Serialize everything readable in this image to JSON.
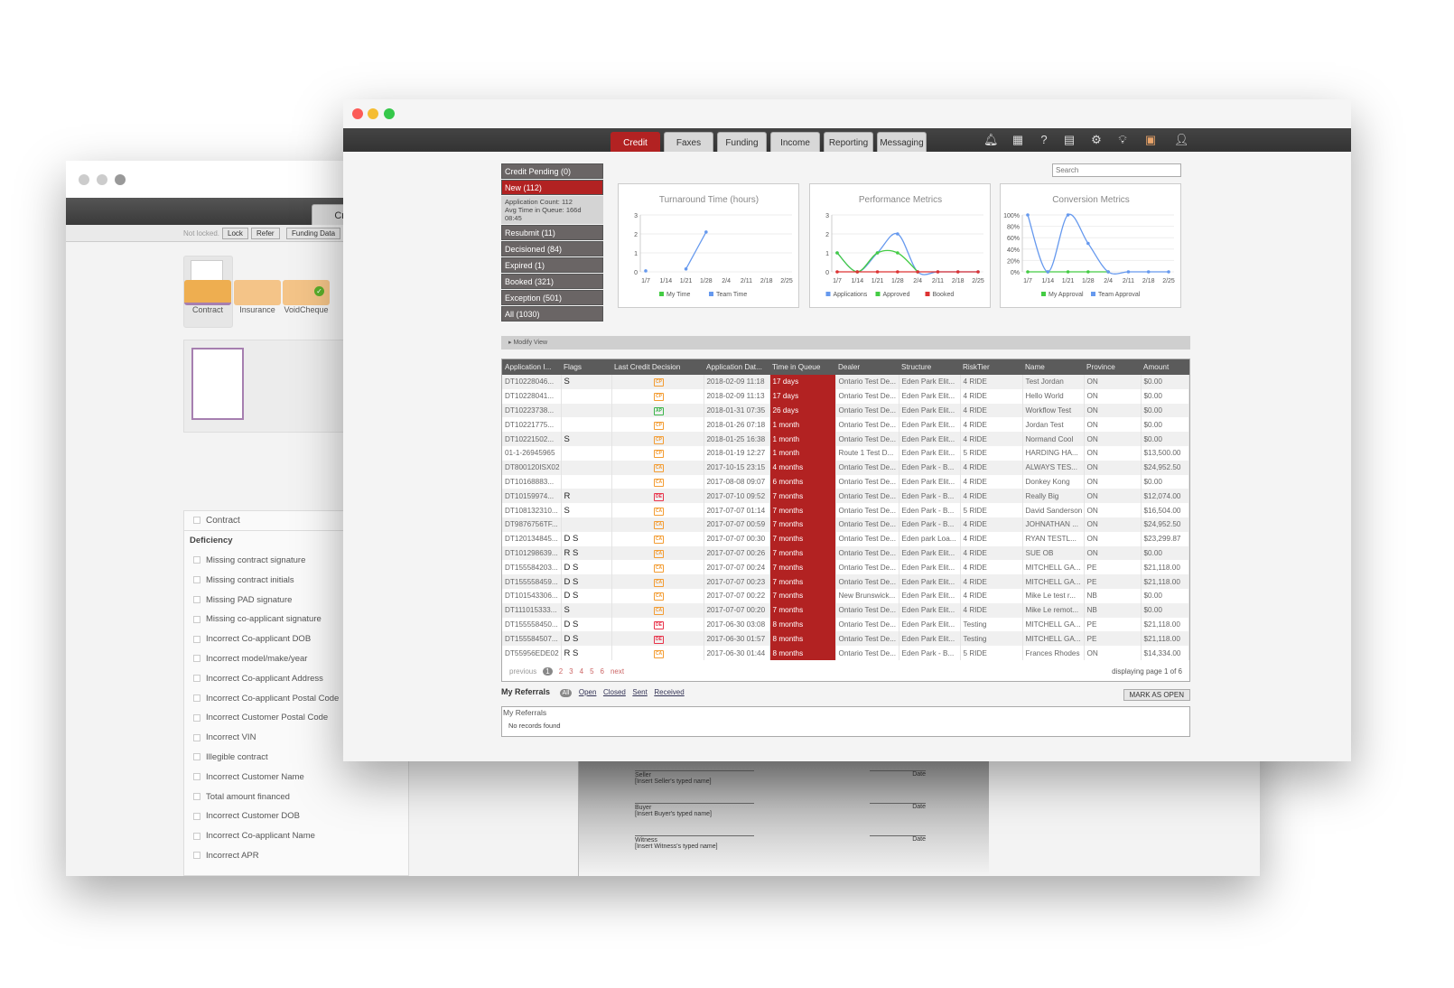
{
  "back_window": {
    "tab": "Credit",
    "lock_status": "Not locked.",
    "buttons": [
      "Lock",
      "Refer",
      "Funding Data"
    ],
    "documents": [
      "Contract",
      "Insurance",
      "VoidCheque"
    ],
    "contract_label": "Contract",
    "deficiency_title": "Deficiency",
    "deficiencies": [
      "Missing contract signature",
      "Missing contract initials",
      "Missing PAD signature",
      "Missing co-applicant signature",
      "Incorrect Co-applicant DOB",
      "Incorrect model/make/year",
      "Incorrect Co-applicant Address",
      "Incorrect Co-applicant Postal Code",
      "Incorrect Customer Postal Code",
      "Incorrect VIN",
      "Illegible contract",
      "Incorrect Customer Name",
      "Total amount financed",
      "Incorrect Customer DOB",
      "Incorrect Co-applicant Name",
      "Incorrect APR"
    ],
    "signatures": [
      {
        "role": "Seller",
        "name": "[Insert Seller's typed name]"
      },
      {
        "role": "Buyer",
        "name": "[Insert Buyer's typed name]"
      },
      {
        "role": "Witness",
        "name": "[Insert Witness's typed name]"
      }
    ],
    "date_label": "Date"
  },
  "nav": {
    "tabs": [
      "Credit",
      "Faxes",
      "Funding",
      "Income",
      "Reporting",
      "Messaging"
    ],
    "active": "Credit",
    "icons": [
      "bell-icon",
      "calculator-icon",
      "help-icon",
      "document-add-icon",
      "settings-icon",
      "lightbulb-icon",
      "locked-folder-icon",
      "user-avatar-icon"
    ]
  },
  "queues": [
    {
      "label": "Credit Pending (0)"
    },
    {
      "label": "New (112)",
      "active": true
    },
    {
      "label": "Resubmit (11)"
    },
    {
      "label": "Decisioned (84)"
    },
    {
      "label": "Expired (1)"
    },
    {
      "label": "Booked (321)"
    },
    {
      "label": "Exception (501)"
    },
    {
      "label": "All (1030)"
    }
  ],
  "queue_info": {
    "count": "Application Count: 112",
    "avg": "Avg Time in Queue: 166d 08:45"
  },
  "search": {
    "placeholder": "Search"
  },
  "chart_data": [
    {
      "type": "line",
      "title": "Turnaround Time (hours)",
      "categories": [
        "1/7",
        "1/14",
        "1/21",
        "1/28",
        "2/4",
        "2/11",
        "2/18",
        "2/25"
      ],
      "ylim": [
        0,
        3
      ],
      "yticks": [
        "0",
        "1",
        "2",
        "3"
      ],
      "series": [
        {
          "name": "My Time",
          "color": "#44cc44",
          "values": [
            null,
            null,
            null,
            null,
            null,
            null,
            null,
            null
          ]
        },
        {
          "name": "Team Time",
          "color": "#6699ee",
          "values": [
            0.05,
            null,
            0.15,
            2.1,
            null,
            null,
            null,
            null
          ]
        }
      ]
    },
    {
      "type": "line",
      "title": "Performance Metrics",
      "categories": [
        "1/7",
        "1/14",
        "1/21",
        "1/28",
        "2/4",
        "2/11",
        "2/18",
        "2/25"
      ],
      "ylim": [
        0,
        3
      ],
      "yticks": [
        "0",
        "1",
        "2",
        "3"
      ],
      "series": [
        {
          "name": "Applications",
          "color": "#6699ee",
          "values": [
            1,
            0,
            1,
            2,
            0,
            0,
            0,
            0
          ]
        },
        {
          "name": "Approved",
          "color": "#44cc44",
          "values": [
            1,
            0,
            1,
            1,
            0,
            null,
            null,
            null
          ]
        },
        {
          "name": "Booked",
          "color": "#dd3333",
          "values": [
            0,
            0,
            0,
            0,
            0,
            0,
            0,
            0
          ]
        }
      ]
    },
    {
      "type": "line",
      "title": "Conversion Metrics",
      "categories": [
        "1/7",
        "1/14",
        "1/21",
        "1/28",
        "2/4",
        "2/11",
        "2/18",
        "2/25"
      ],
      "ylim": [
        0,
        100
      ],
      "yticks": [
        "0%",
        "20%",
        "40%",
        "60%",
        "80%",
        "100%"
      ],
      "series": [
        {
          "name": "My Approval",
          "color": "#44cc44",
          "values": [
            0,
            0,
            0,
            0,
            0,
            null,
            null,
            null
          ]
        },
        {
          "name": "Team Approval",
          "color": "#6699ee",
          "values": [
            100,
            0,
            100,
            50,
            0,
            0,
            0,
            0
          ]
        }
      ]
    }
  ],
  "modify_view": "Modify View",
  "table": {
    "headers": [
      "Application I...",
      "Flags",
      "Last Credit Decision",
      "Application Dat...",
      "Time in Queue",
      "Dealer",
      "Structure",
      "RiskTier",
      "Name",
      "Province",
      "Amount"
    ],
    "rows": [
      [
        "DT10228046...",
        "S",
        "CP",
        "2018-02-09 11:18",
        "17 days",
        "Ontario Test De...",
        "Eden Park Elit...",
        "4 RIDE",
        "Test Jordan",
        "ON",
        "$0.00"
      ],
      [
        "DT10228041...",
        "",
        "CP",
        "2018-02-09 11:13",
        "17 days",
        "Ontario Test De...",
        "Eden Park Elit...",
        "4 RIDE",
        "Hello World",
        "ON",
        "$0.00"
      ],
      [
        "DT10223738...",
        "",
        "AP",
        "2018-01-31 07:35",
        "26 days",
        "Ontario Test De...",
        "Eden Park Elit...",
        "4 RIDE",
        "Workflow Test",
        "ON",
        "$0.00"
      ],
      [
        "DT10221775...",
        "",
        "CP",
        "2018-01-26 07:18",
        "1 month",
        "Ontario Test De...",
        "Eden Park Elit...",
        "4 RIDE",
        "Jordan Test",
        "ON",
        "$0.00"
      ],
      [
        "DT10221502...",
        "S",
        "CP",
        "2018-01-25 16:38",
        "1 month",
        "Ontario Test De...",
        "Eden Park Elit...",
        "4 RIDE",
        "Normand Cool",
        "ON",
        "$0.00"
      ],
      [
        "01-1-26945965",
        "",
        "CP",
        "2018-01-19 12:27",
        "1 month",
        "Route 1 Test D...",
        "Eden Park Elit...",
        "5 RIDE",
        "HARDING HA...",
        "ON",
        "$13,500.00"
      ],
      [
        "DT800120ISX02",
        "",
        "CA",
        "2017-10-15 23:15",
        "4 months",
        "Ontario Test De...",
        "Eden Park - B...",
        "4 RIDE",
        "ALWAYS TES...",
        "ON",
        "$24,952.50"
      ],
      [
        "DT10168883...",
        "",
        "CA",
        "2017-08-08 09:07",
        "6 months",
        "Ontario Test De...",
        "Eden Park Elit...",
        "4 RIDE",
        "Donkey Kong",
        "ON",
        "$0.00"
      ],
      [
        "DT10159974...",
        "R",
        "DE",
        "2017-07-10 09:52",
        "7 months",
        "Ontario Test De...",
        "Eden Park - B...",
        "4 RIDE",
        "Really Big",
        "ON",
        "$12,074.00"
      ],
      [
        "DT108132310...",
        "S",
        "CA",
        "2017-07-07 01:14",
        "7 months",
        "Ontario Test De...",
        "Eden Park - B...",
        "5 RIDE",
        "David Sanderson",
        "ON",
        "$16,504.00"
      ],
      [
        "DT9876756TF...",
        "",
        "CA",
        "2017-07-07 00:59",
        "7 months",
        "Ontario Test De...",
        "Eden Park - B...",
        "4 RIDE",
        "JOHNATHAN ...",
        "ON",
        "$24,952.50"
      ],
      [
        "DT120134845...",
        "D S",
        "CA",
        "2017-07-07 00:30",
        "7 months",
        "Ontario Test De...",
        "Eden park Loa...",
        "4 RIDE",
        "RYAN TESTL...",
        "ON",
        "$23,299.87"
      ],
      [
        "DT101298639...",
        "R S",
        "CA",
        "2017-07-07 00:26",
        "7 months",
        "Ontario Test De...",
        "Eden Park Elit...",
        "4 RIDE",
        "SUE OB",
        "ON",
        "$0.00"
      ],
      [
        "DT155584203...",
        "D S",
        "CA",
        "2017-07-07 00:24",
        "7 months",
        "Ontario Test De...",
        "Eden Park Elit...",
        "4 RIDE",
        "MITCHELL GA...",
        "PE",
        "$21,118.00"
      ],
      [
        "DT155558459...",
        "D S",
        "CA",
        "2017-07-07 00:23",
        "7 months",
        "Ontario Test De...",
        "Eden Park Elit...",
        "4 RIDE",
        "MITCHELL GA...",
        "PE",
        "$21,118.00"
      ],
      [
        "DT101543306...",
        "D S",
        "CA",
        "2017-07-07 00:22",
        "7 months",
        "New Brunswick...",
        "Eden Park Elit...",
        "4 RIDE",
        "Mike Le test r...",
        "NB",
        "$0.00"
      ],
      [
        "DT111015333...",
        "S",
        "CA",
        "2017-07-07 00:20",
        "7 months",
        "Ontario Test De...",
        "Eden Park Elit...",
        "4 RIDE",
        "Mike Le remot...",
        "NB",
        "$0.00"
      ],
      [
        "DT155558450...",
        "D S",
        "DE",
        "2017-06-30 03:08",
        "8 months",
        "Ontario Test De...",
        "Eden Park Elit...",
        "Testing",
        "MITCHELL GA...",
        "PE",
        "$21,118.00"
      ],
      [
        "DT155584507...",
        "D S",
        "DE",
        "2017-06-30 01:57",
        "8 months",
        "Ontario Test De...",
        "Eden Park Elit...",
        "Testing",
        "MITCHELL GA...",
        "PE",
        "$21,118.00"
      ],
      [
        "DT55956EDE02",
        "R S",
        "CA",
        "2017-06-30 01:44",
        "8 months",
        "Ontario Test De...",
        "Eden Park - B...",
        "5 RIDE",
        "Frances Rhodes",
        "ON",
        "$14,334.00"
      ]
    ],
    "decision_colors": {
      "CP": "#f39c32",
      "CA": "#f39c32",
      "AP": "#3bb54a",
      "DE": "#e8334a"
    }
  },
  "pagination": {
    "previous": "previous",
    "pages": [
      "1",
      "2",
      "3",
      "4",
      "5",
      "6"
    ],
    "current": "1",
    "next": "next",
    "info": "displaying page 1 of 6"
  },
  "referrals": {
    "title": "My Referrals",
    "filters": [
      "All",
      "Open",
      "Closed",
      "Sent",
      "Received"
    ],
    "mark_button": "MARK AS OPEN",
    "box_title": "My Referrals",
    "empty": "No records found"
  },
  "colors": {
    "accent": "#b22222"
  }
}
